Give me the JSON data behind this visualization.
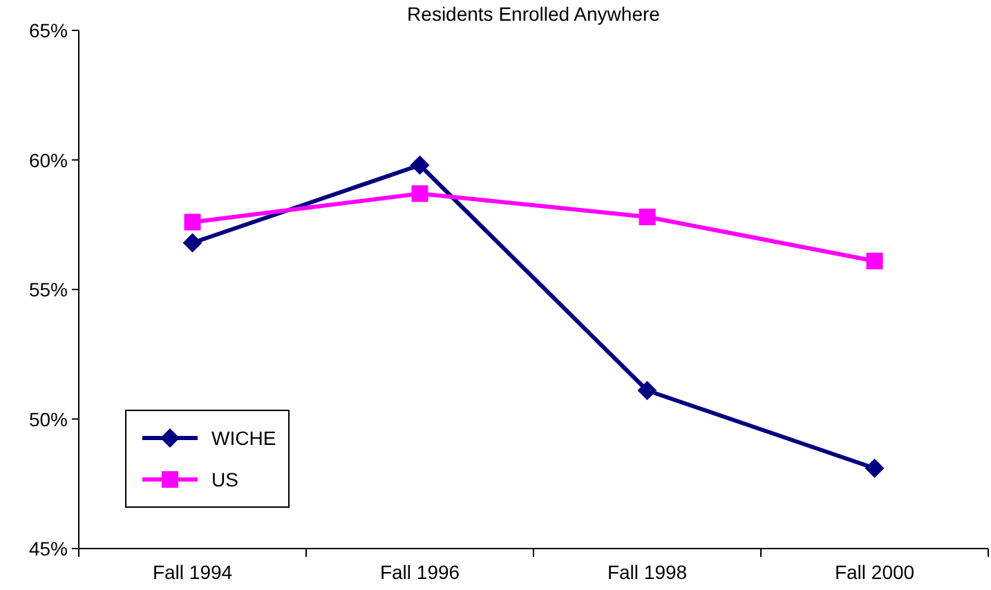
{
  "chart_data": {
    "type": "line",
    "title": "Residents Enrolled Anywhere",
    "categories": [
      "Fall 1994",
      "Fall 1996",
      "Fall 1998",
      "Fall 2000"
    ],
    "series": [
      {
        "name": "WICHE",
        "color": "#000080",
        "marker": "diamond",
        "values": [
          56.8,
          59.8,
          51.1,
          48.1
        ]
      },
      {
        "name": "US",
        "color": "#ff00ff",
        "marker": "square",
        "values": [
          57.6,
          58.7,
          57.8,
          56.1
        ]
      }
    ],
    "ylim": [
      45,
      65
    ],
    "yticks": [
      {
        "value": 45,
        "label": "45%"
      },
      {
        "value": 50,
        "label": "50%"
      },
      {
        "value": 55,
        "label": "55%"
      },
      {
        "value": 60,
        "label": "60%"
      },
      {
        "value": 65,
        "label": "65%"
      }
    ],
    "grid": false,
    "legend": "bottom left",
    "line_style": "solid"
  }
}
